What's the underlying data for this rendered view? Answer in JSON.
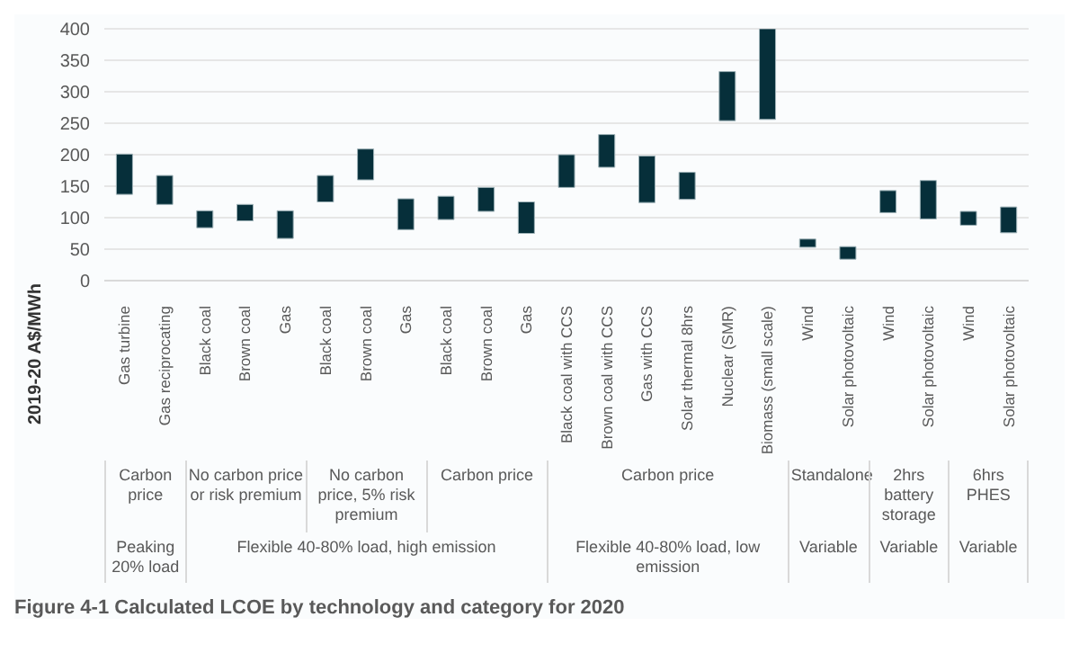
{
  "chart_data": {
    "type": "bar",
    "ylabel": "2019-20 A$/MWh",
    "categories": [
      "Gas turbine",
      "Gas reciprocating",
      "Black coal",
      "Brown coal",
      "Gas",
      "Black coal",
      "Brown coal",
      "Gas",
      "Black coal",
      "Brown coal",
      "Gas",
      "Black coal with CCS",
      "Brown coal with CCS",
      "Gas with CCS",
      "Solar thermal 8hrs",
      "Nuclear (SMR)",
      "Biomass (small scale)",
      "Wind",
      "Solar photovoltaic",
      "Wind",
      "Solar photovoltaic",
      "Wind",
      "Solar photovoltaic"
    ],
    "base": [
      137,
      121,
      84,
      95,
      67,
      125,
      160,
      81,
      97,
      110,
      75,
      148,
      180,
      124,
      129,
      254,
      256,
      53,
      34,
      108,
      98,
      88,
      76
    ],
    "values": [
      64,
      46,
      27,
      26,
      44,
      42,
      49,
      49,
      37,
      38,
      50,
      52,
      52,
      74,
      43,
      78,
      144,
      13,
      20,
      35,
      61,
      22,
      41
    ],
    "color": "#062f3a",
    "ylim": [
      0,
      400
    ],
    "yticks": [
      0,
      50,
      100,
      150,
      200,
      250,
      300,
      350,
      400
    ],
    "grid": "y",
    "annotations": [
      "Carbon price",
      "No carbon price or risk premium",
      "No carbon price, 5% risk premium",
      "Carbon price",
      "Carbon price",
      "Standalone",
      "2hrs battery storage",
      "6hrs PHES",
      "Peaking 20% load",
      "Flexible 40-80% load, high emission",
      "Flexible 40-80% load, low emission",
      "Variable",
      "Variable",
      "Variable",
      "Figure 4-1 Calculated LCOE by technology and category for 2020"
    ]
  }
}
